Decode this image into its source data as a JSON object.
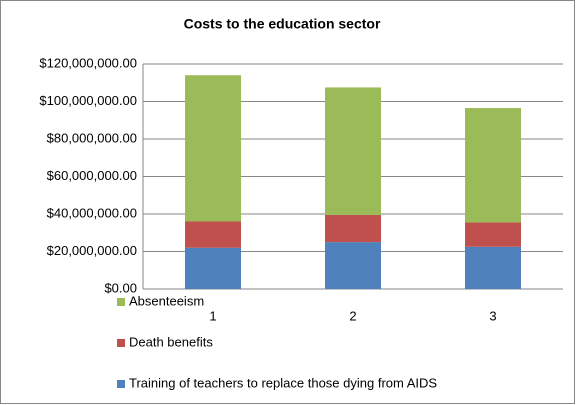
{
  "chart_data": {
    "type": "stacked-bar",
    "title": "Costs to the education sector",
    "categories": [
      "1",
      "2",
      "3"
    ],
    "series": [
      {
        "name": "Training of teachers to replace those dying from AIDS",
        "color": "#4f81bd",
        "values": [
          22000000,
          25000000,
          22500000
        ]
      },
      {
        "name": "Death benefits",
        "color": "#c0504d",
        "values": [
          14000000,
          14500000,
          13000000
        ]
      },
      {
        "name": "Absenteeism",
        "color": "#9bbb59",
        "values": [
          78000000,
          68000000,
          61000000
        ]
      }
    ],
    "ylim": [
      0,
      120000000
    ],
    "yticks": [
      {
        "value": 0,
        "label": "$0.00"
      },
      {
        "value": 20000000,
        "label": "$20,000,000.00"
      },
      {
        "value": 40000000,
        "label": "$40,000,000.00"
      },
      {
        "value": 60000000,
        "label": "$60,000,000.00"
      },
      {
        "value": 80000000,
        "label": "$80,000,000.00"
      },
      {
        "value": 100000000,
        "label": "$100,000,000.00"
      },
      {
        "value": 120000000,
        "label": "$120,000,000.00"
      }
    ],
    "grid": true,
    "legend": "bottom"
  }
}
